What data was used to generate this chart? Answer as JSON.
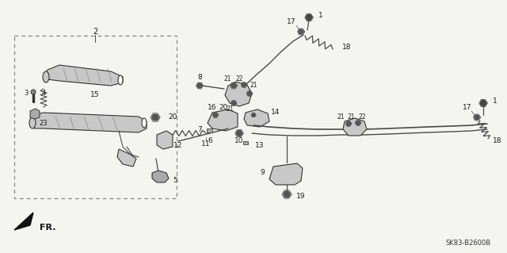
{
  "bg_color": "#f5f5f0",
  "diagram_code": "SK83-B2600B",
  "fr_label": "FR.",
  "line_color": "#4a4a4a",
  "part_fill": "#c8c8c8",
  "part_edge": "#333333"
}
